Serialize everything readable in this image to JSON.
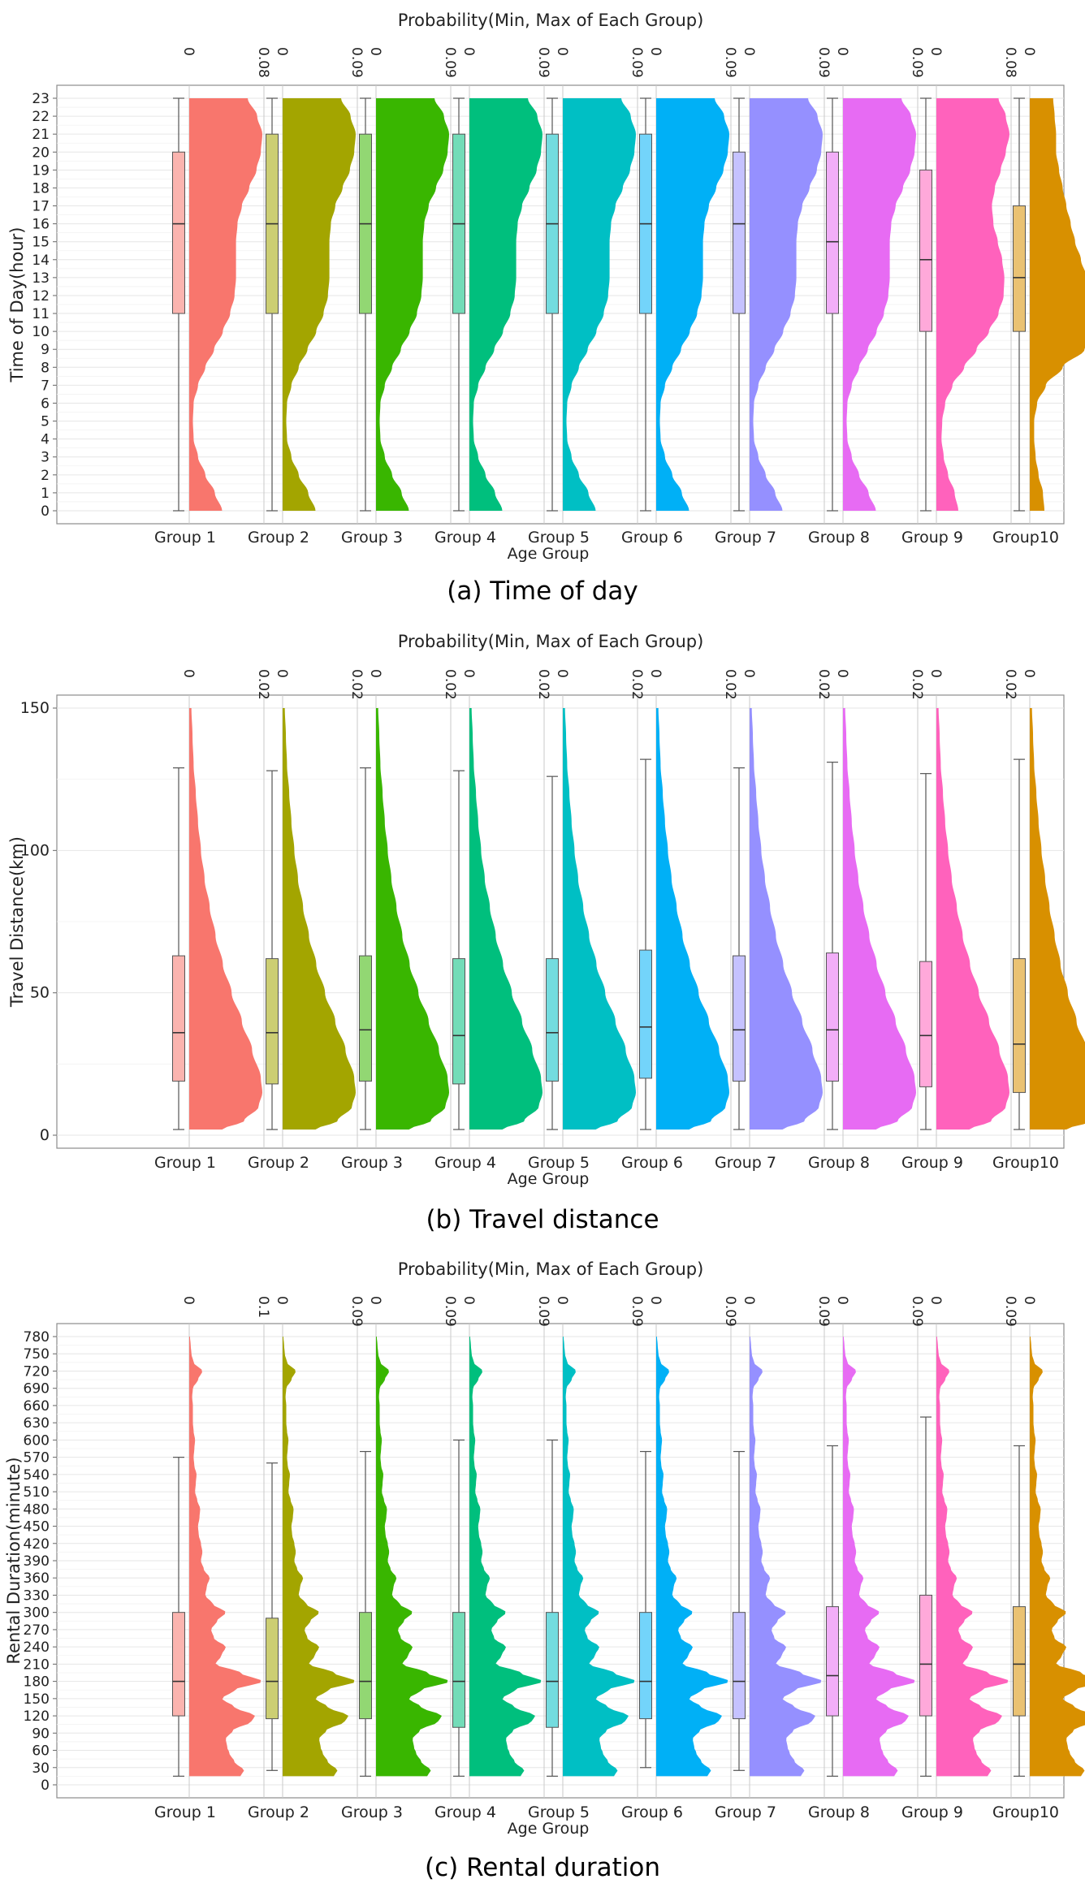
{
  "chart_data": [
    {
      "type": "violin-box",
      "caption": "(a) Time of day",
      "top_axis_title": "Probability(Min, Max of Each Group)",
      "xlabel": "Age Group",
      "ylabel": "Time of Day(hour)",
      "ylim": [
        0,
        23
      ],
      "y_ticks": [
        0,
        1,
        2,
        3,
        4,
        5,
        6,
        7,
        8,
        9,
        10,
        11,
        12,
        13,
        14,
        15,
        16,
        17,
        18,
        19,
        20,
        21,
        22,
        23
      ],
      "top_tick_labels": [
        "0",
        "0.08",
        "0",
        "0.09",
        "0",
        "0.09",
        "0",
        "0.09",
        "0",
        "0.09",
        "0",
        "0.09",
        "0",
        "0.09",
        "0",
        "0.09",
        "0",
        "0.08",
        "0",
        "0.08",
        "0",
        "0.09"
      ],
      "groups": [
        {
          "name": "Group 1",
          "color": "#F8766D",
          "box": {
            "min": 0,
            "q1": 11,
            "median": 16,
            "q3": 20,
            "max": 23
          },
          "density_max": 0.08
        },
        {
          "name": "Group 2",
          "color": "#A3A500",
          "box": {
            "min": 0,
            "q1": 11,
            "median": 16,
            "q3": 21,
            "max": 23
          },
          "density_max": 0.09
        },
        {
          "name": "Group 3",
          "color": "#39B600",
          "box": {
            "min": 0,
            "q1": 11,
            "median": 16,
            "q3": 21,
            "max": 23
          },
          "density_max": 0.09
        },
        {
          "name": "Group 4",
          "color": "#00BF7D",
          "box": {
            "min": 0,
            "q1": 11,
            "median": 16,
            "q3": 21,
            "max": 23
          },
          "density_max": 0.09
        },
        {
          "name": "Group 5",
          "color": "#00BFC4",
          "box": {
            "min": 0,
            "q1": 11,
            "median": 16,
            "q3": 21,
            "max": 23
          },
          "density_max": 0.09
        },
        {
          "name": "Group 6",
          "color": "#00B0F6",
          "box": {
            "min": 0,
            "q1": 11,
            "median": 16,
            "q3": 21,
            "max": 23
          },
          "density_max": 0.09
        },
        {
          "name": "Group 7",
          "color": "#9590FF",
          "box": {
            "min": 0,
            "q1": 11,
            "median": 16,
            "q3": 20,
            "max": 23
          },
          "density_max": 0.09
        },
        {
          "name": "Group 8",
          "color": "#E76BF3",
          "box": {
            "min": 0,
            "q1": 11,
            "median": 15,
            "q3": 20,
            "max": 23
          },
          "density_max": 0.08
        },
        {
          "name": "Group 9",
          "color": "#FF62BC",
          "box": {
            "min": 0,
            "q1": 10,
            "median": 14,
            "q3": 19,
            "max": 23
          },
          "density_max": 0.08
        },
        {
          "name": "Group10",
          "color": "#D89000",
          "box": {
            "min": 0,
            "q1": 10,
            "median": 13,
            "q3": 17,
            "max": 23
          },
          "density_max": 0.09
        }
      ],
      "density_profiles": {
        "y": [
          0,
          1,
          2,
          3,
          4,
          5,
          6,
          7,
          8,
          9,
          10,
          11,
          12,
          13,
          14,
          15,
          16,
          17,
          18,
          19,
          20,
          21,
          22,
          23
        ],
        "typical": [
          0.45,
          0.35,
          0.22,
          0.12,
          0.06,
          0.05,
          0.06,
          0.12,
          0.22,
          0.34,
          0.46,
          0.56,
          0.62,
          0.64,
          0.64,
          0.64,
          0.66,
          0.72,
          0.82,
          0.92,
          0.98,
          1.0,
          0.93,
          0.8
        ],
        "group9": [
          0.3,
          0.25,
          0.16,
          0.1,
          0.07,
          0.08,
          0.12,
          0.22,
          0.38,
          0.55,
          0.72,
          0.85,
          0.92,
          0.93,
          0.9,
          0.84,
          0.78,
          0.76,
          0.8,
          0.88,
          0.95,
          1.0,
          0.95,
          0.85
        ],
        "group10": [
          0.2,
          0.18,
          0.12,
          0.08,
          0.06,
          0.06,
          0.1,
          0.22,
          0.45,
          0.75,
          1.0,
          0.97,
          0.87,
          0.78,
          0.7,
          0.62,
          0.56,
          0.5,
          0.45,
          0.4,
          0.36,
          0.36,
          0.34,
          0.32
        ]
      }
    },
    {
      "type": "violin-box",
      "caption": "(b) Travel distance",
      "top_axis_title": "Probability(Min, Max of Each Group)",
      "xlabel": "Age Group",
      "ylabel": "Travel Distance(km)",
      "ylim": [
        0,
        150
      ],
      "y_ticks": [
        0,
        50,
        100,
        150
      ],
      "top_tick_labels": [
        "0",
        "0.02",
        "0",
        "0.02",
        "0",
        "0.02",
        "0",
        "0.02",
        "0",
        "0.02",
        "0",
        "0.02",
        "0",
        "0.02",
        "0",
        "0.02",
        "0",
        "0.02",
        "0",
        "0.02",
        "0",
        "0.02"
      ],
      "groups": [
        {
          "name": "Group 1",
          "color": "#F8766D",
          "box": {
            "min": 2,
            "q1": 19,
            "median": 36,
            "q3": 63,
            "max": 129
          },
          "density_max": 0.02
        },
        {
          "name": "Group 2",
          "color": "#A3A500",
          "box": {
            "min": 2,
            "q1": 18,
            "median": 36,
            "q3": 62,
            "max": 128
          },
          "density_max": 0.02
        },
        {
          "name": "Group 3",
          "color": "#39B600",
          "box": {
            "min": 2,
            "q1": 19,
            "median": 37,
            "q3": 63,
            "max": 129
          },
          "density_max": 0.02
        },
        {
          "name": "Group 4",
          "color": "#00BF7D",
          "box": {
            "min": 2,
            "q1": 18,
            "median": 35,
            "q3": 62,
            "max": 128
          },
          "density_max": 0.02
        },
        {
          "name": "Group 5",
          "color": "#00BFC4",
          "box": {
            "min": 2,
            "q1": 19,
            "median": 36,
            "q3": 62,
            "max": 126
          },
          "density_max": 0.02
        },
        {
          "name": "Group 6",
          "color": "#00B0F6",
          "box": {
            "min": 2,
            "q1": 20,
            "median": 38,
            "q3": 65,
            "max": 132
          },
          "density_max": 0.02
        },
        {
          "name": "Group 7",
          "color": "#9590FF",
          "box": {
            "min": 2,
            "q1": 19,
            "median": 37,
            "q3": 63,
            "max": 129
          },
          "density_max": 0.02
        },
        {
          "name": "Group 8",
          "color": "#E76BF3",
          "box": {
            "min": 2,
            "q1": 19,
            "median": 37,
            "q3": 64,
            "max": 131
          },
          "density_max": 0.02
        },
        {
          "name": "Group 9",
          "color": "#FF62BC",
          "box": {
            "min": 2,
            "q1": 17,
            "median": 35,
            "q3": 61,
            "max": 127
          },
          "density_max": 0.02
        },
        {
          "name": "Group10",
          "color": "#D89000",
          "box": {
            "min": 2,
            "q1": 15,
            "median": 32,
            "q3": 62,
            "max": 132
          },
          "density_max": 0.02
        }
      ],
      "density_profiles": {
        "y": [
          2,
          5,
          10,
          15,
          20,
          30,
          40,
          50,
          60,
          70,
          80,
          90,
          100,
          110,
          120,
          130,
          140,
          150
        ],
        "typical": [
          0.45,
          0.75,
          0.95,
          1.0,
          0.98,
          0.86,
          0.72,
          0.58,
          0.46,
          0.36,
          0.28,
          0.21,
          0.16,
          0.12,
          0.09,
          0.06,
          0.045,
          0.03
        ],
        "group10": [
          0.5,
          0.85,
          1.0,
          0.98,
          0.92,
          0.78,
          0.64,
          0.52,
          0.42,
          0.34,
          0.27,
          0.21,
          0.16,
          0.12,
          0.09,
          0.06,
          0.045,
          0.03
        ]
      }
    },
    {
      "type": "violin-box",
      "caption": "(c) Rental duration",
      "top_axis_title": "Probability(Min, Max of Each Group)",
      "xlabel": "Age Group",
      "ylabel": "Rental Duration(minute)",
      "ylim": [
        0,
        780
      ],
      "y_ticks": [
        0,
        30,
        60,
        90,
        120,
        150,
        180,
        210,
        240,
        270,
        300,
        330,
        360,
        390,
        420,
        450,
        480,
        510,
        540,
        570,
        600,
        630,
        660,
        690,
        720,
        750,
        780
      ],
      "top_tick_labels": [
        "0",
        "0.1",
        "0",
        "0.09",
        "0",
        "0.09",
        "0",
        "0.09",
        "0",
        "0.09",
        "0",
        "0.09",
        "0",
        "0.09",
        "0",
        "0.09",
        "0",
        "0.09",
        "0",
        "0.09",
        "0",
        "0.1"
      ],
      "groups": [
        {
          "name": "Group 1",
          "color": "#F8766D",
          "box": {
            "min": 15,
            "q1": 120,
            "median": 180,
            "q3": 300,
            "max": 570
          },
          "density_max": 0.1
        },
        {
          "name": "Group 2",
          "color": "#A3A500",
          "box": {
            "min": 25,
            "q1": 115,
            "median": 180,
            "q3": 290,
            "max": 560
          },
          "density_max": 0.09
        },
        {
          "name": "Group 3",
          "color": "#39B600",
          "box": {
            "min": 15,
            "q1": 115,
            "median": 180,
            "q3": 300,
            "max": 580
          },
          "density_max": 0.09
        },
        {
          "name": "Group 4",
          "color": "#00BF7D",
          "box": {
            "min": 15,
            "q1": 100,
            "median": 180,
            "q3": 300,
            "max": 600
          },
          "density_max": 0.09
        },
        {
          "name": "Group 5",
          "color": "#00BFC4",
          "box": {
            "min": 15,
            "q1": 100,
            "median": 180,
            "q3": 300,
            "max": 600
          },
          "density_max": 0.09
        },
        {
          "name": "Group 6",
          "color": "#00B0F6",
          "box": {
            "min": 30,
            "q1": 115,
            "median": 180,
            "q3": 300,
            "max": 580
          },
          "density_max": 0.09
        },
        {
          "name": "Group 7",
          "color": "#9590FF",
          "box": {
            "min": 25,
            "q1": 115,
            "median": 180,
            "q3": 300,
            "max": 580
          },
          "density_max": 0.09
        },
        {
          "name": "Group 8",
          "color": "#E76BF3",
          "box": {
            "min": 15,
            "q1": 120,
            "median": 190,
            "q3": 310,
            "max": 590
          },
          "density_max": 0.09
        },
        {
          "name": "Group 9",
          "color": "#FF62BC",
          "box": {
            "min": 15,
            "q1": 120,
            "median": 210,
            "q3": 330,
            "max": 640
          },
          "density_max": 0.09
        },
        {
          "name": "Group10",
          "color": "#D89000",
          "box": {
            "min": 15,
            "q1": 120,
            "median": 210,
            "q3": 310,
            "max": 590
          },
          "density_max": 0.1
        }
      ],
      "density_profiles": {
        "y": [
          15,
          25,
          40,
          55,
          65,
          80,
          95,
          110,
          120,
          135,
          150,
          165,
          180,
          195,
          210,
          225,
          240,
          255,
          270,
          285,
          300,
          315,
          330,
          345,
          360,
          375,
          390,
          405,
          420,
          435,
          450,
          465,
          480,
          495,
          510,
          525,
          540,
          555,
          570,
          585,
          600,
          615,
          630,
          645,
          660,
          675,
          690,
          705,
          720,
          735,
          750,
          765,
          780
        ],
        "typical": [
          0.7,
          0.75,
          0.62,
          0.55,
          0.52,
          0.5,
          0.6,
          0.85,
          0.9,
          0.62,
          0.45,
          0.62,
          1.0,
          0.7,
          0.36,
          0.44,
          0.5,
          0.34,
          0.3,
          0.38,
          0.5,
          0.32,
          0.22,
          0.24,
          0.28,
          0.2,
          0.16,
          0.18,
          0.16,
          0.13,
          0.12,
          0.14,
          0.15,
          0.11,
          0.08,
          0.09,
          0.1,
          0.07,
          0.06,
          0.07,
          0.08,
          0.06,
          0.05,
          0.05,
          0.05,
          0.04,
          0.05,
          0.12,
          0.18,
          0.06,
          0.03,
          0.02,
          0.01
        ]
      }
    }
  ]
}
